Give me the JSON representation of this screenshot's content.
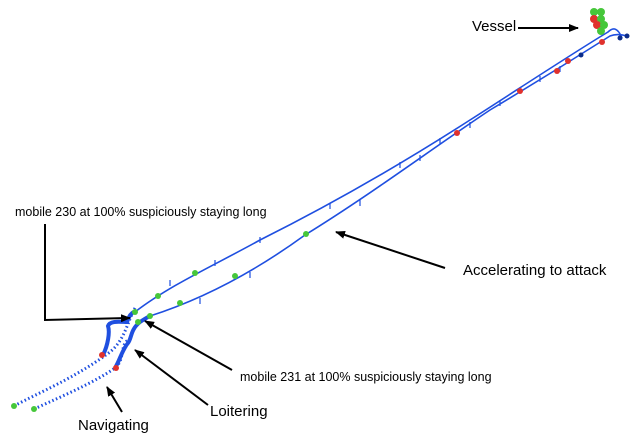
{
  "annotations": {
    "vessel": "Vessel",
    "mobile230": "mobile 230 at 100% suspiciously staying long",
    "accelerating": "Accelerating to attack",
    "mobile231": "mobile 231 at 100% suspiciously staying long",
    "loitering": "Loitering",
    "navigating": "Navigating"
  },
  "colors": {
    "track": "#1f4fe0",
    "normal_point": "#46c73a",
    "alert_point": "#e0312d",
    "vessel_point": "#0b2c8a",
    "arrow": "#000000"
  }
}
